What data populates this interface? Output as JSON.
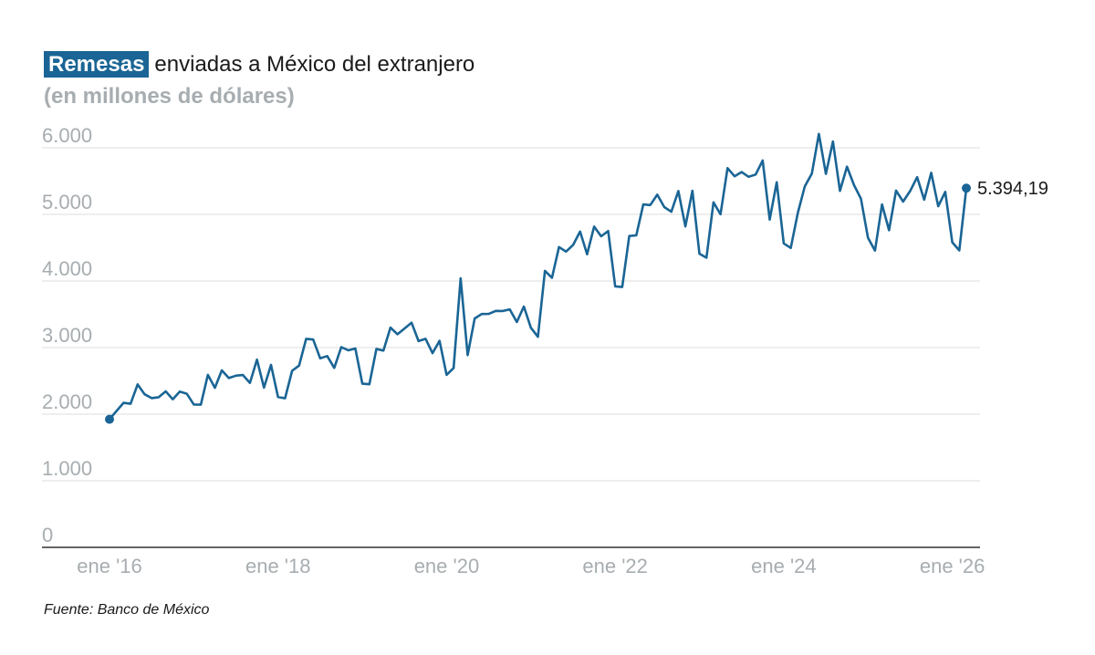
{
  "header": {
    "title_highlight": "Remesas",
    "title_rest": "enviadas a México del extranjero",
    "subtitle": "(en millones de dólares)"
  },
  "footer": {
    "source": "Fuente: Banco de México"
  },
  "colors": {
    "line": "#1a6595",
    "grid": "#dcdcdc",
    "tick": "#a7adb0",
    "axis": "#333333"
  },
  "chart_data": {
    "type": "line",
    "title": "Remesas enviadas a México del extranjero",
    "subtitle": "(en millones de dólares)",
    "xlabel": "",
    "ylabel": "",
    "ylim": [
      0,
      6000
    ],
    "yticks": [
      0,
      1000,
      2000,
      3000,
      4000,
      5000,
      6000
    ],
    "ytick_labels": [
      "0",
      "1.000",
      "2.000",
      "3.000",
      "4.000",
      "5.000",
      "6.000"
    ],
    "xticks": [
      "ene '16",
      "ene '18",
      "ene '20",
      "ene '22",
      "ene '24",
      "ene '26"
    ],
    "x_start": "ene '16",
    "x_end": "ene '26",
    "grid": "horizontal",
    "end_label": "5.394,19",
    "series": [
      {
        "values": [
          1923,
          2048,
          2170,
          2156,
          2447,
          2298,
          2241,
          2255,
          2342,
          2223,
          2339,
          2307,
          2145,
          2143,
          2591,
          2396,
          2658,
          2542,
          2578,
          2587,
          2470,
          2819,
          2399,
          2740,
          2257,
          2238,
          2651,
          2730,
          3132,
          3121,
          2838,
          2872,
          2694,
          3007,
          2959,
          2986,
          2457,
          2449,
          2980,
          2955,
          3300,
          3200,
          3286,
          3374,
          3097,
          3131,
          2917,
          3101,
          2590,
          2693,
          4040,
          2886,
          3437,
          3504,
          3505,
          3551,
          3549,
          3573,
          3384,
          3616,
          3297,
          3161,
          4152,
          4048,
          4510,
          4441,
          4540,
          4743,
          4401,
          4816,
          4671,
          4750,
          3918,
          3909,
          4675,
          4685,
          5149,
          5140,
          5296,
          5110,
          5040,
          5351,
          4819,
          5355,
          4409,
          4349,
          5181,
          5002,
          5694,
          5572,
          5635,
          5564,
          5598,
          5809,
          4922,
          5482,
          4565,
          4496,
          5020,
          5422,
          5613,
          6208,
          5608,
          6095,
          5353,
          5716,
          5440,
          5236,
          4650,
          4456,
          5149,
          4761,
          5357,
          5192,
          5351,
          5559,
          5220,
          5624,
          5122,
          5339,
          4581,
          4459,
          5394
        ]
      }
    ]
  }
}
